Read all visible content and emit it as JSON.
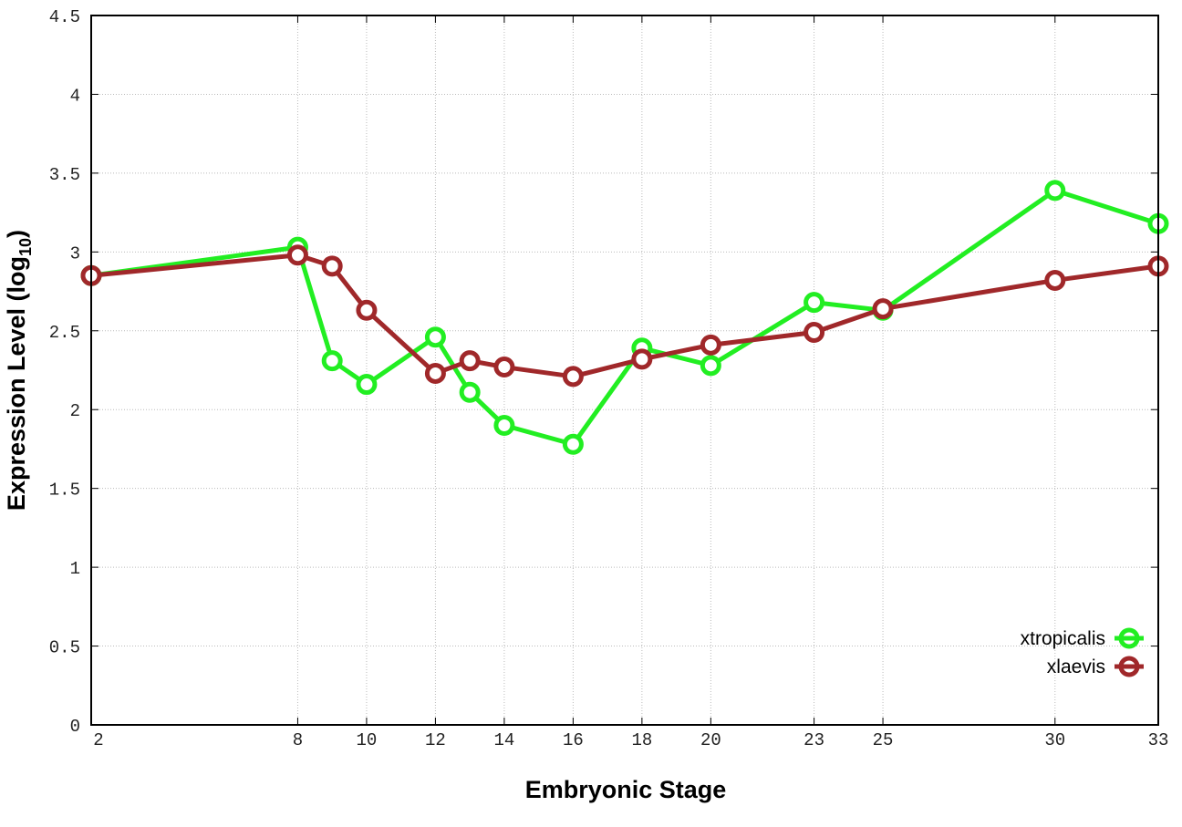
{
  "chart_data": {
    "type": "line",
    "title": "",
    "xlabel": "Embryonic Stage",
    "ylabel": "Expression Level (log",
    "ylabel_subscript": "10",
    "ylabel_suffix": ")",
    "x": [
      2,
      8,
      9,
      10,
      12,
      13,
      14,
      16,
      18,
      20,
      23,
      25,
      30,
      33
    ],
    "xticks": [
      "2",
      "8",
      "10",
      "12",
      "14",
      "16",
      "18",
      "20",
      "23",
      "25",
      "30",
      "33"
    ],
    "xtick_values": [
      2,
      8,
      10,
      12,
      14,
      16,
      18,
      20,
      23,
      25,
      30,
      33
    ],
    "yticks": [
      "0",
      "0.5",
      "1",
      "1.5",
      "2",
      "2.5",
      "3",
      "3.5",
      "4",
      "4.5"
    ],
    "ytick_values": [
      0,
      0.5,
      1,
      1.5,
      2,
      2.5,
      3,
      3.5,
      4,
      4.5
    ],
    "xlim": [
      2,
      33
    ],
    "ylim": [
      0,
      4.5
    ],
    "grid": true,
    "legend_position": "bottom-right",
    "series": [
      {
        "name": "xtropicalis",
        "color": "#22ee22",
        "values": [
          2.85,
          3.03,
          2.31,
          2.16,
          2.46,
          2.11,
          1.9,
          1.78,
          2.39,
          2.28,
          2.68,
          2.63,
          3.39,
          3.18
        ]
      },
      {
        "name": "xlaevis",
        "color": "#a0282a",
        "values": [
          2.85,
          2.98,
          2.91,
          2.63,
          2.23,
          2.31,
          2.27,
          2.21,
          2.32,
          2.41,
          2.49,
          2.64,
          2.82,
          2.91
        ]
      }
    ]
  }
}
